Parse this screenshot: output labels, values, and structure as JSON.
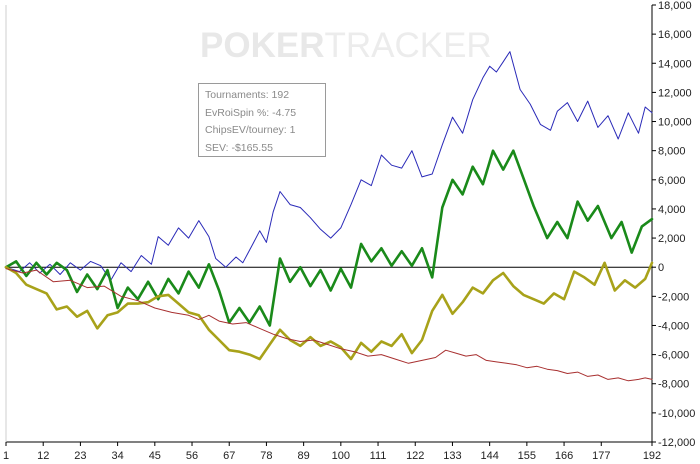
{
  "watermark": {
    "part1": "POKER",
    "part2": "TRACKER"
  },
  "info": {
    "tournaments": "Tournaments: 192",
    "evroi": "EvRoiSpin %: -4.75",
    "chipsev": "ChipsEV/tourney: 1",
    "sev": "SEV: -$165.55"
  },
  "colors": {
    "blue": "#2a2ab8",
    "green": "#1a8a1a",
    "olive": "#a8a21a",
    "red": "#a83030",
    "axis": "#000000",
    "grid": "#d6d6d6"
  },
  "chart_data": {
    "type": "line",
    "xlim": [
      1,
      192
    ],
    "ylim": [
      -12000,
      18000
    ],
    "x_ticks": [
      1,
      12,
      23,
      34,
      45,
      56,
      67,
      78,
      89,
      100,
      111,
      122,
      133,
      144,
      155,
      166,
      177,
      192
    ],
    "y_ticks": [
      -12000,
      -10000,
      -8000,
      -6000,
      -4000,
      -2000,
      0,
      2000,
      4000,
      6000,
      8000,
      10000,
      12000,
      14000,
      16000,
      18000
    ],
    "y_tick_labels": [
      "-12,000",
      "-10,000",
      "-8,000",
      "-6,000",
      "-4,000",
      "-2,000",
      "0",
      "2,000",
      "4,000",
      "6,000",
      "8,000",
      "10,000",
      "12,000",
      "14,000",
      "16,000",
      "18,000"
    ],
    "grid": false,
    "series": [
      {
        "color": "blue",
        "width": 1,
        "points": [
          [
            1,
            0
          ],
          [
            5,
            -300
          ],
          [
            8,
            300
          ],
          [
            11,
            -400
          ],
          [
            14,
            200
          ],
          [
            17,
            -500
          ],
          [
            20,
            300
          ],
          [
            23,
            -200
          ],
          [
            26,
            400
          ],
          [
            29,
            100
          ],
          [
            32,
            -900
          ],
          [
            35,
            300
          ],
          [
            38,
            -300
          ],
          [
            41,
            800
          ],
          [
            44,
            200
          ],
          [
            46,
            2100
          ],
          [
            49,
            1500
          ],
          [
            52,
            2700
          ],
          [
            55,
            2000
          ],
          [
            58,
            3200
          ],
          [
            61,
            2100
          ],
          [
            63,
            600
          ],
          [
            66,
            0
          ],
          [
            69,
            700
          ],
          [
            71,
            300
          ],
          [
            74,
            1600
          ],
          [
            76,
            2500
          ],
          [
            78,
            1700
          ],
          [
            80,
            3800
          ],
          [
            82,
            5200
          ],
          [
            85,
            4300
          ],
          [
            88,
            4100
          ],
          [
            91,
            3400
          ],
          [
            94,
            2600
          ],
          [
            97,
            2000
          ],
          [
            100,
            2700
          ],
          [
            103,
            4300
          ],
          [
            106,
            6000
          ],
          [
            109,
            5600
          ],
          [
            112,
            7700
          ],
          [
            115,
            7000
          ],
          [
            118,
            6800
          ],
          [
            121,
            8000
          ],
          [
            124,
            6200
          ],
          [
            127,
            6400
          ],
          [
            130,
            8400
          ],
          [
            133,
            10300
          ],
          [
            136,
            9200
          ],
          [
            139,
            11500
          ],
          [
            142,
            13000
          ],
          [
            144,
            13800
          ],
          [
            146,
            13400
          ],
          [
            148,
            14100
          ],
          [
            150,
            14800
          ],
          [
            153,
            12200
          ],
          [
            156,
            11200
          ],
          [
            159,
            9800
          ],
          [
            162,
            9400
          ],
          [
            164,
            10700
          ],
          [
            167,
            11300
          ],
          [
            170,
            10000
          ],
          [
            173,
            11400
          ],
          [
            176,
            9600
          ],
          [
            179,
            10400
          ],
          [
            182,
            8800
          ],
          [
            185,
            10600
          ],
          [
            188,
            9200
          ],
          [
            190,
            11000
          ],
          [
            192,
            10600
          ]
        ]
      },
      {
        "color": "green",
        "width": 2.6,
        "points": [
          [
            1,
            0
          ],
          [
            4,
            400
          ],
          [
            7,
            -600
          ],
          [
            10,
            300
          ],
          [
            13,
            -500
          ],
          [
            16,
            300
          ],
          [
            19,
            -200
          ],
          [
            22,
            -1700
          ],
          [
            25,
            -500
          ],
          [
            28,
            -1500
          ],
          [
            31,
            -200
          ],
          [
            34,
            -2800
          ],
          [
            37,
            -1400
          ],
          [
            40,
            -2200
          ],
          [
            43,
            -1000
          ],
          [
            46,
            -2200
          ],
          [
            49,
            -800
          ],
          [
            52,
            -1800
          ],
          [
            55,
            -300
          ],
          [
            58,
            -1400
          ],
          [
            61,
            200
          ],
          [
            64,
            -1600
          ],
          [
            67,
            -3800
          ],
          [
            70,
            -2800
          ],
          [
            73,
            -3800
          ],
          [
            76,
            -2700
          ],
          [
            79,
            -4000
          ],
          [
            82,
            600
          ],
          [
            85,
            -1000
          ],
          [
            88,
            0
          ],
          [
            91,
            -1300
          ],
          [
            94,
            -200
          ],
          [
            97,
            -1600
          ],
          [
            100,
            -100
          ],
          [
            103,
            -1400
          ],
          [
            106,
            1600
          ],
          [
            109,
            400
          ],
          [
            112,
            1300
          ],
          [
            115,
            100
          ],
          [
            118,
            1100
          ],
          [
            121,
            100
          ],
          [
            124,
            1300
          ],
          [
            127,
            -700
          ],
          [
            130,
            4100
          ],
          [
            133,
            6000
          ],
          [
            136,
            5000
          ],
          [
            139,
            6900
          ],
          [
            142,
            5700
          ],
          [
            145,
            8000
          ],
          [
            148,
            6700
          ],
          [
            151,
            8000
          ],
          [
            154,
            6100
          ],
          [
            157,
            4200
          ],
          [
            161,
            2000
          ],
          [
            164,
            3100
          ],
          [
            167,
            2000
          ],
          [
            170,
            4500
          ],
          [
            173,
            3200
          ],
          [
            176,
            4200
          ],
          [
            180,
            2000
          ],
          [
            183,
            3100
          ],
          [
            186,
            1000
          ],
          [
            189,
            2800
          ],
          [
            192,
            3300
          ]
        ]
      },
      {
        "color": "olive",
        "width": 2.6,
        "points": [
          [
            1,
            0
          ],
          [
            4,
            -400
          ],
          [
            7,
            -1200
          ],
          [
            10,
            -1500
          ],
          [
            13,
            -1800
          ],
          [
            16,
            -2900
          ],
          [
            19,
            -2700
          ],
          [
            22,
            -3400
          ],
          [
            25,
            -3000
          ],
          [
            28,
            -4200
          ],
          [
            31,
            -3300
          ],
          [
            34,
            -3100
          ],
          [
            37,
            -2500
          ],
          [
            40,
            -2500
          ],
          [
            43,
            -2400
          ],
          [
            46,
            -2000
          ],
          [
            49,
            -1900
          ],
          [
            52,
            -2500
          ],
          [
            55,
            -3100
          ],
          [
            58,
            -3300
          ],
          [
            61,
            -4300
          ],
          [
            64,
            -5000
          ],
          [
            67,
            -5700
          ],
          [
            70,
            -5800
          ],
          [
            73,
            -6000
          ],
          [
            76,
            -6300
          ],
          [
            79,
            -5300
          ],
          [
            82,
            -4300
          ],
          [
            85,
            -5000
          ],
          [
            88,
            -5400
          ],
          [
            91,
            -4800
          ],
          [
            94,
            -5400
          ],
          [
            97,
            -5100
          ],
          [
            100,
            -5500
          ],
          [
            103,
            -6300
          ],
          [
            106,
            -5200
          ],
          [
            109,
            -5800
          ],
          [
            112,
            -5100
          ],
          [
            115,
            -5400
          ],
          [
            118,
            -4600
          ],
          [
            121,
            -5900
          ],
          [
            124,
            -5000
          ],
          [
            127,
            -3000
          ],
          [
            130,
            -1900
          ],
          [
            133,
            -3200
          ],
          [
            136,
            -2400
          ],
          [
            139,
            -1400
          ],
          [
            142,
            -1800
          ],
          [
            145,
            -900
          ],
          [
            148,
            -400
          ],
          [
            151,
            -1300
          ],
          [
            154,
            -1900
          ],
          [
            157,
            -2200
          ],
          [
            160,
            -2500
          ],
          [
            163,
            -1800
          ],
          [
            166,
            -2200
          ],
          [
            169,
            -300
          ],
          [
            172,
            -700
          ],
          [
            175,
            -1200
          ],
          [
            178,
            300
          ],
          [
            181,
            -1600
          ],
          [
            184,
            -900
          ],
          [
            187,
            -1400
          ],
          [
            190,
            -800
          ],
          [
            192,
            300
          ]
        ]
      },
      {
        "color": "red",
        "width": 1,
        "points": [
          [
            1,
            -100
          ],
          [
            6,
            -400
          ],
          [
            10,
            -200
          ],
          [
            15,
            -1000
          ],
          [
            20,
            -900
          ],
          [
            25,
            -1400
          ],
          [
            30,
            -1300
          ],
          [
            35,
            -2000
          ],
          [
            40,
            -2300
          ],
          [
            45,
            -2800
          ],
          [
            50,
            -3100
          ],
          [
            55,
            -3300
          ],
          [
            58,
            -3600
          ],
          [
            61,
            -3300
          ],
          [
            64,
            -3700
          ],
          [
            68,
            -3900
          ],
          [
            72,
            -3800
          ],
          [
            76,
            -4200
          ],
          [
            80,
            -4600
          ],
          [
            84,
            -4900
          ],
          [
            88,
            -5100
          ],
          [
            92,
            -5000
          ],
          [
            96,
            -5300
          ],
          [
            100,
            -5600
          ],
          [
            104,
            -5800
          ],
          [
            108,
            -6100
          ],
          [
            112,
            -6000
          ],
          [
            116,
            -6300
          ],
          [
            120,
            -6600
          ],
          [
            124,
            -6400
          ],
          [
            128,
            -6200
          ],
          [
            131,
            -5700
          ],
          [
            134,
            -5900
          ],
          [
            137,
            -6100
          ],
          [
            140,
            -6000
          ],
          [
            143,
            -6400
          ],
          [
            146,
            -6500
          ],
          [
            149,
            -6600
          ],
          [
            152,
            -6700
          ],
          [
            155,
            -6900
          ],
          [
            158,
            -6800
          ],
          [
            161,
            -7000
          ],
          [
            164,
            -7100
          ],
          [
            167,
            -7300
          ],
          [
            170,
            -7200
          ],
          [
            173,
            -7500
          ],
          [
            176,
            -7400
          ],
          [
            179,
            -7700
          ],
          [
            182,
            -7600
          ],
          [
            185,
            -7800
          ],
          [
            188,
            -7700
          ],
          [
            190,
            -7600
          ],
          [
            192,
            -7700
          ]
        ]
      }
    ]
  }
}
